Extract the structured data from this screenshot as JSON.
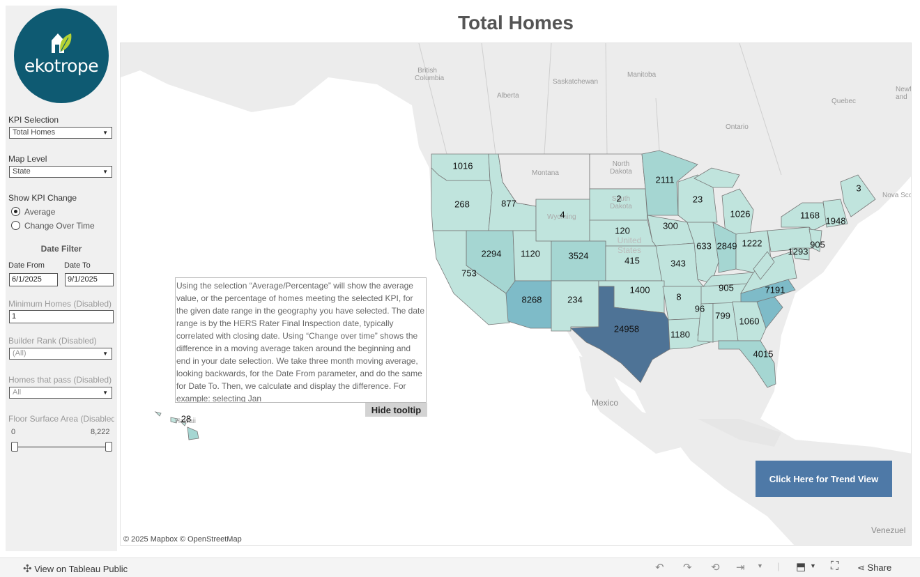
{
  "title": "Total Homes",
  "logo": {
    "word": "ekotrope"
  },
  "filters": {
    "kpi_label": "KPI Selection",
    "kpi_value": "Total Homes",
    "map_level_label": "Map Level",
    "map_level_value": "State",
    "show_change_label": "Show KPI Change",
    "radio_average": "Average",
    "radio_change": "Change Over Time",
    "date_filter_heading": "Date Filter",
    "date_from_label": "Date From",
    "date_to_label": "Date To",
    "date_from_value": "6/1/2025",
    "date_to_value": "9/1/2025",
    "min_homes_label": "Minimum Homes (Disabled)",
    "min_homes_value": "1",
    "builder_rank_label": "Builder Rank (Disabled)",
    "builder_rank_value": "(All)",
    "homes_pass_label": "Homes that pass (Disabled)",
    "homes_pass_value": "All",
    "floor_area_label": "Floor Surface Area (Disabled)",
    "floor_min": "0",
    "floor_max": "8,222"
  },
  "map": {
    "place_labels": {
      "bc": "British Columbia",
      "alberta": "Alberta",
      "sask": "Saskatchewan",
      "manitoba": "Manitoba",
      "ontario": "Ontario",
      "quebec": "Quebec",
      "newf": "Newf and",
      "nova": "Nova Sco",
      "montana": "Montana",
      "nd": "North Dakota",
      "sd": "South Dakota",
      "wy": "Wyoming",
      "us": "United States",
      "mexico": "Mexico",
      "venez": "Venezuel",
      "hawaii": "Hawaii"
    },
    "state_values": {
      "WA": "1016",
      "OR": "268",
      "ID": "877",
      "WY": "4",
      "ND": "2",
      "SD": "2",
      "MN": "2111",
      "WI": "23",
      "MI": "1026",
      "ME": "3",
      "NE": "120",
      "IA": "300",
      "NY": "1168",
      "MA": "1948",
      "NV": "2294",
      "UT": "1120",
      "CO": "3524",
      "KS": "415",
      "IL": "633",
      "IN": "2849",
      "OH": "1222",
      "PA": "1293",
      "NJ": "905",
      "CA": "753",
      "MO": "343",
      "AZ": "8268",
      "NM": "234",
      "OK": "1400",
      "AR": "8",
      "TN": "905",
      "NC": "7191",
      "TX": "24958",
      "MS": "96",
      "AL": "799",
      "GA": "1060",
      "LA": "1180",
      "FL": "4015",
      "HI": "28"
    },
    "colors": {
      "light": "#c0e4dd",
      "mid": "#a5d6d2",
      "strong": "#7ebbc8",
      "dark": "#4e7396"
    }
  },
  "tooltip_text": "Using the selection “Average/Percentage” will show the average value, or the percentage of homes meeting the selected KPI, for the given date range in the geography you have selected. The date range is by the HERS Rater Final Inspection date, typically correlated with closing date. Using “Change over time” shows the difference in a moving average taken around the beginning and end in your date selection. We take three month moving average, looking backwards, for the Date From parameter, and do the same for Date To. Then, we calculate and display the difference. For example: selecting Jan",
  "hide_tooltip_label": "Hide tooltip",
  "trend_button_label": "Click Here for Trend View",
  "attribution": "© 2025 Mapbox  © OpenStreetMap",
  "footer": {
    "view_label": "View on Tableau Public",
    "share_label": "Share"
  }
}
